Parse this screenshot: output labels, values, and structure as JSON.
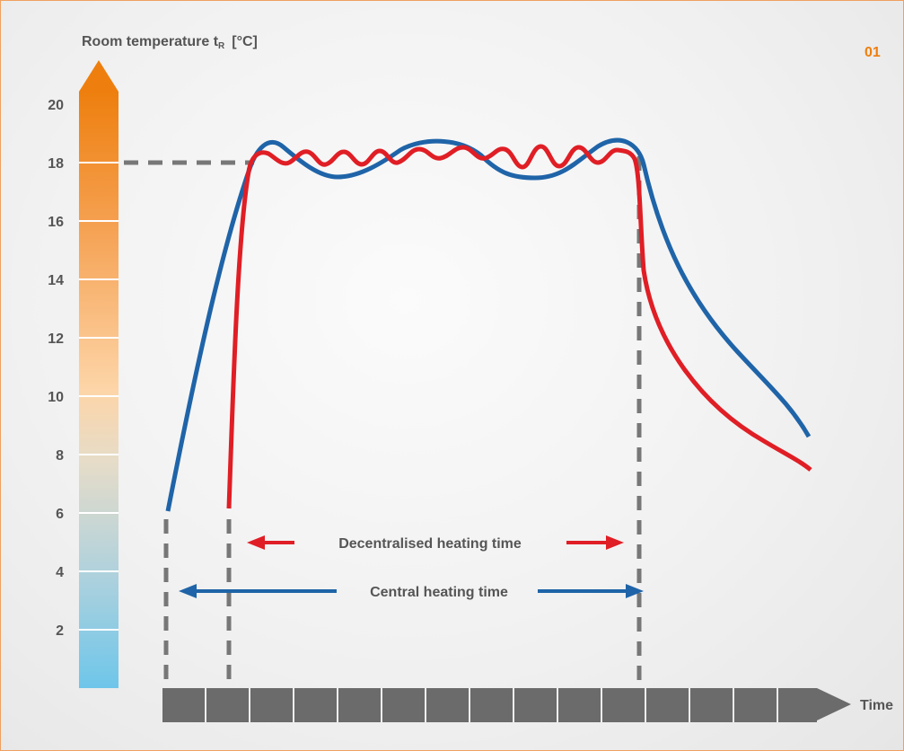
{
  "figure_number": "01",
  "chart_data": {
    "type": "line",
    "ylabel_main": "Room temperature t",
    "ylabel_sub": "R",
    "ylabel_unit": "[°C]",
    "xlabel": "Time",
    "ylim": [
      0,
      21
    ],
    "y_ticks": [
      2,
      4,
      6,
      8,
      10,
      12,
      14,
      16,
      18,
      20
    ],
    "reference_y": 18,
    "colors": {
      "central": "#1f64a8",
      "decentral": "#e01e25",
      "scale_top": "#ee7f0e",
      "scale_bottom": "#6ec6ea",
      "axis_bar": "#6b6b6b",
      "guides": "#777777",
      "figure_number": "#ee7f0e",
      "labels": "#555555"
    },
    "annotations": {
      "decentral": "Decentralised heating time",
      "central": "Central heating time"
    }
  }
}
